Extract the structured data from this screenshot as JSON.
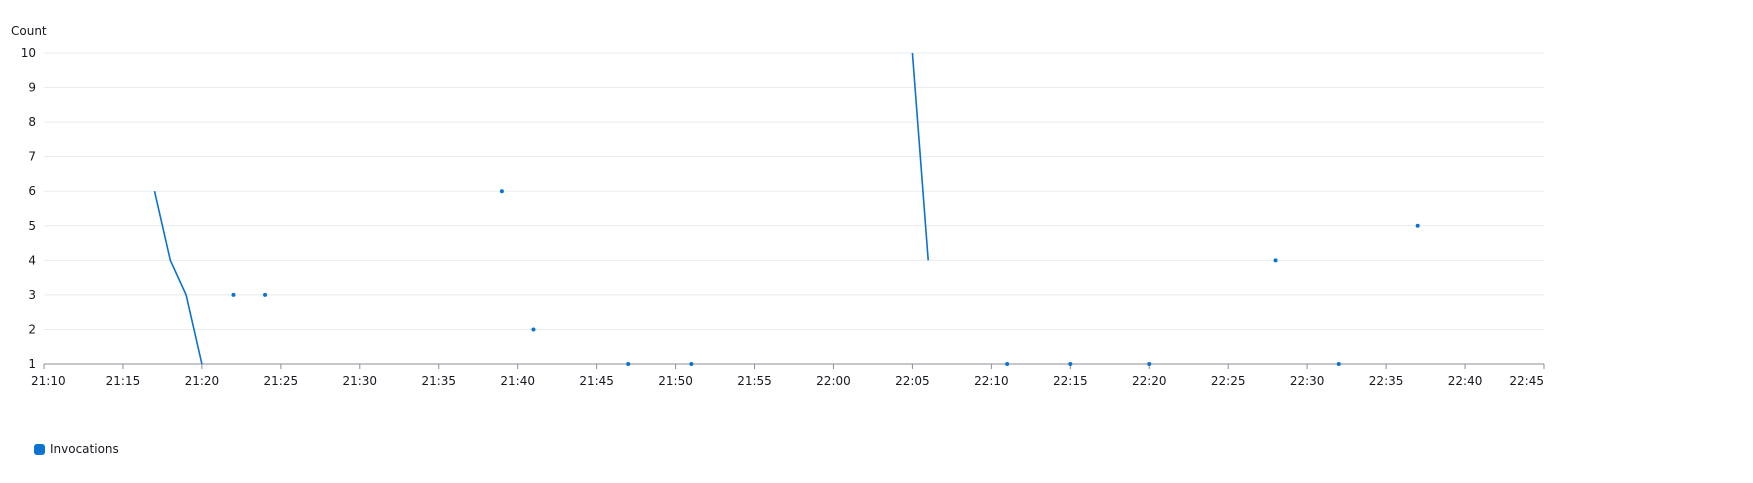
{
  "chart_data": {
    "type": "line",
    "ylabel": "Count",
    "ylim": [
      1,
      10
    ],
    "yticks": [
      1,
      2,
      3,
      4,
      5,
      6,
      7,
      8,
      9,
      10
    ],
    "xlim": [
      "21:10",
      "22:45"
    ],
    "xticks": [
      "21:10",
      "21:15",
      "21:20",
      "21:25",
      "21:30",
      "21:35",
      "21:40",
      "21:45",
      "21:50",
      "21:55",
      "22:00",
      "22:05",
      "22:10",
      "22:15",
      "22:20",
      "22:25",
      "22:30",
      "22:35",
      "22:40",
      "22:45"
    ],
    "grid": true,
    "legend_position": "bottom-left",
    "series": [
      {
        "name": "Invocations",
        "color": "#0972d3",
        "points": [
          {
            "x": "21:17",
            "y": 6
          },
          {
            "x": "21:18",
            "y": 4
          },
          {
            "x": "21:19",
            "y": 3
          },
          {
            "x": "21:20",
            "y": 1
          },
          {
            "x": "21:22",
            "y": 3
          },
          {
            "x": "21:24",
            "y": 3
          },
          {
            "x": "21:39",
            "y": 6
          },
          {
            "x": "21:41",
            "y": 2
          },
          {
            "x": "21:47",
            "y": 1
          },
          {
            "x": "21:51",
            "y": 1
          },
          {
            "x": "22:05",
            "y": 10
          },
          {
            "x": "22:06",
            "y": 4
          },
          {
            "x": "22:11",
            "y": 1
          },
          {
            "x": "22:15",
            "y": 1
          },
          {
            "x": "22:20",
            "y": 1
          },
          {
            "x": "22:28",
            "y": 4
          },
          {
            "x": "22:32",
            "y": 1
          },
          {
            "x": "22:37",
            "y": 5
          }
        ]
      }
    ]
  }
}
